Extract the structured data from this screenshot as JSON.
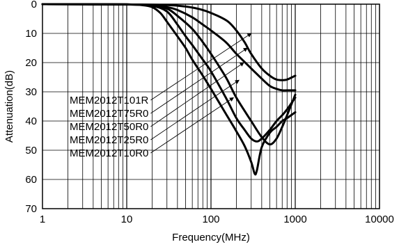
{
  "chart_data": {
    "type": "line",
    "xlabel": "Frequency(MHz)",
    "ylabel": "Attenuation(dB)",
    "x_scale": "log",
    "xlim": [
      1,
      10000
    ],
    "ylim": [
      0,
      70
    ],
    "y_inverted": true,
    "grid": true,
    "x_ticks": [
      "1",
      "10",
      "100",
      "1000",
      "10000"
    ],
    "y_ticks": [
      "0",
      "10",
      "20",
      "30",
      "40",
      "50",
      "60",
      "70"
    ],
    "series": [
      {
        "name": "MEM2012T101R",
        "x": [
          1,
          10,
          30,
          50,
          80,
          120,
          160,
          200,
          250,
          300,
          400,
          500,
          600,
          700,
          800,
          1000
        ],
        "y": [
          0,
          0.1,
          0.3,
          0.8,
          2,
          4,
          6,
          9,
          13,
          17,
          22,
          24.5,
          25.8,
          26,
          25.8,
          24.5
        ]
      },
      {
        "name": "MEM2012T75R0",
        "x": [
          1,
          10,
          20,
          30,
          40,
          60,
          80,
          100,
          150,
          200,
          300,
          400,
          500,
          600,
          700,
          800,
          1000
        ],
        "y": [
          0,
          0.1,
          0.4,
          1,
          2,
          4.5,
          7,
          9,
          13,
          17,
          22,
          25.5,
          28,
          29,
          29.5,
          29.5,
          29.5
        ]
      },
      {
        "name": "MEM2012T50R0",
        "x": [
          1,
          10,
          20,
          30,
          40,
          60,
          80,
          100,
          150,
          200,
          300,
          400,
          500,
          600,
          700,
          800,
          1000
        ],
        "y": [
          0,
          0.1,
          0.5,
          1.5,
          4,
          8.5,
          13,
          17,
          25,
          32,
          40,
          45.5,
          48,
          46,
          42,
          38,
          31
        ]
      },
      {
        "name": "MEM2012T25R0",
        "x": [
          1,
          10,
          20,
          30,
          40,
          50,
          60,
          80,
          100,
          150,
          200,
          250,
          300,
          350,
          400,
          500,
          600,
          700,
          800,
          1000
        ],
        "y": [
          0,
          0.1,
          0.6,
          2.5,
          7,
          11,
          14,
          19,
          23,
          32,
          39,
          43,
          46,
          47,
          46,
          43,
          40,
          38,
          36,
          32
        ]
      },
      {
        "name": "MEM2012T10R0",
        "x": [
          1,
          10,
          15,
          20,
          25,
          30,
          40,
          50,
          60,
          80,
          100,
          150,
          200,
          250,
          300,
          330,
          350,
          400,
          500,
          600,
          700,
          800,
          1000
        ],
        "y": [
          0,
          0.1,
          0.3,
          1,
          3,
          6,
          11,
          15,
          19,
          24.5,
          29,
          37.5,
          43.5,
          48.5,
          54,
          58,
          57,
          49,
          44,
          42,
          40,
          39,
          37
        ]
      }
    ]
  }
}
